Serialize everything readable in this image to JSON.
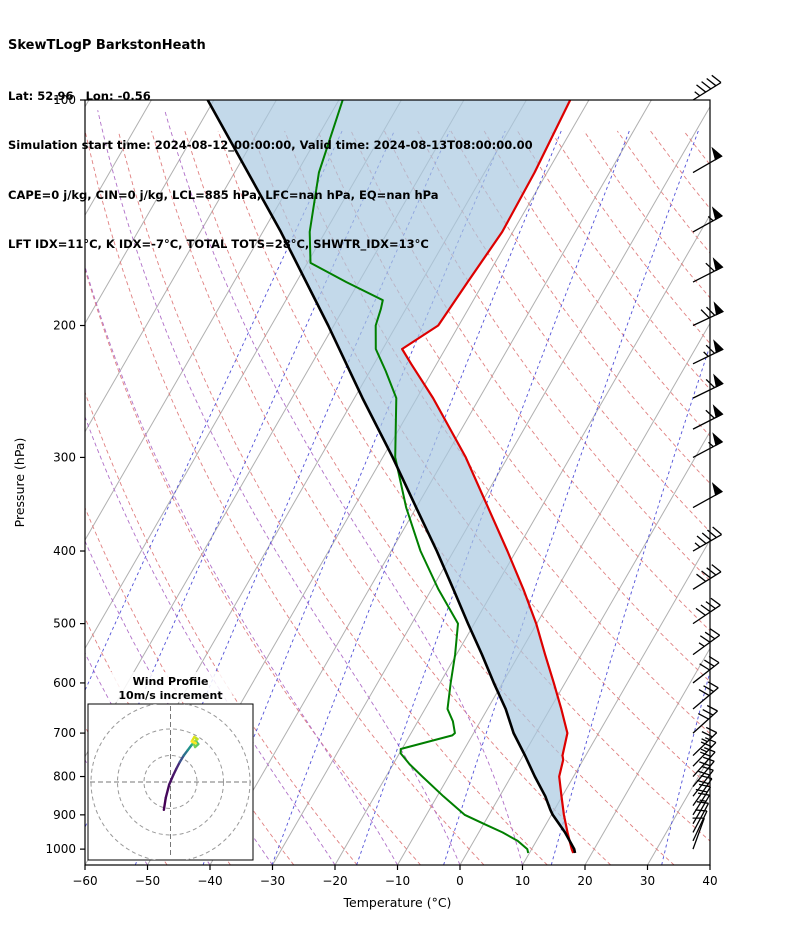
{
  "header": {
    "title": "SkewTLogP BarkstonHeath",
    "location": "Lat: 52.96   Lon: -0.56",
    "times": "Simulation start time: 2024-08-12_00:00:00, Valid time: 2024-08-13T08:00:00.00",
    "indices1": "CAPE=0 j/kg, CIN=0 j/kg, LCL=885 hPa, LFC=nan hPa, EQ=nan hPa",
    "indices2": "LFT IDX=11°C, K IDX=-7°C, TOTAL TOTS=28°C, SHWTR_IDX=13°C"
  },
  "chart_data": {
    "type": "skewt-logp",
    "title": "SkewTLogP BarkstonHeath",
    "xlabel": "Temperature (°C)",
    "ylabel": "Pressure (hPa)",
    "xlim": [
      -60,
      40
    ],
    "plim": [
      100,
      1050
    ],
    "skew_slope": 0.577,
    "x_ticks": [
      -60,
      -50,
      -40,
      -30,
      -20,
      -10,
      0,
      10,
      20,
      30,
      40
    ],
    "y_ticks": [
      100,
      200,
      300,
      400,
      500,
      600,
      700,
      800,
      900,
      1000
    ],
    "grid": {
      "isotherms_c": {
        "start": -160,
        "end": 40,
        "step": 10
      },
      "dry_adiabats_c": {
        "start": -50,
        "end": 180,
        "step": 10
      },
      "moist_adiabat_starts_c": [
        -60,
        -50,
        -40,
        -30,
        -20,
        -10,
        0,
        10
      ],
      "mixing_ratio_lines_g_kg": [
        0.002,
        0.008,
        0.03,
        0.1,
        0.3,
        1,
        3,
        10,
        30
      ]
    },
    "temperature_profile": [
      [
        1012,
        17.0
      ],
      [
        1000,
        16.4
      ],
      [
        950,
        14.2
      ],
      [
        900,
        12.0
      ],
      [
        850,
        9.9
      ],
      [
        800,
        7.7
      ],
      [
        760,
        6.8
      ],
      [
        750,
        6.3
      ],
      [
        700,
        5.0
      ],
      [
        650,
        1.8
      ],
      [
        600,
        -1.8
      ],
      [
        550,
        -5.8
      ],
      [
        500,
        -10.1
      ],
      [
        450,
        -15.3
      ],
      [
        400,
        -21.4
      ],
      [
        350,
        -28.5
      ],
      [
        300,
        -36.7
      ],
      [
        250,
        -47.4
      ],
      [
        225,
        -54.1
      ],
      [
        215,
        -56.9
      ],
      [
        200,
        -53.3
      ],
      [
        175,
        -52.6
      ],
      [
        150,
        -51.7
      ],
      [
        125,
        -52.0
      ],
      [
        100,
        -53.0
      ]
    ],
    "dewpoint_profile": [
      [
        1012,
        9.8
      ],
      [
        1000,
        9.3
      ],
      [
        975,
        7.0
      ],
      [
        950,
        3.8
      ],
      [
        925,
        0.0
      ],
      [
        900,
        -3.9
      ],
      [
        850,
        -9.0
      ],
      [
        800,
        -14.2
      ],
      [
        770,
        -17.4
      ],
      [
        745,
        -19.8
      ],
      [
        735,
        -20.2
      ],
      [
        705,
        -13.2
      ],
      [
        700,
        -13.0
      ],
      [
        675,
        -14.4
      ],
      [
        650,
        -16.4
      ],
      [
        600,
        -18.3
      ],
      [
        550,
        -20.2
      ],
      [
        500,
        -22.6
      ],
      [
        450,
        -28.9
      ],
      [
        400,
        -35.3
      ],
      [
        350,
        -41.6
      ],
      [
        300,
        -48.0
      ],
      [
        250,
        -53.3
      ],
      [
        230,
        -57.5
      ],
      [
        215,
        -61.1
      ],
      [
        200,
        -63.3
      ],
      [
        190,
        -64.0
      ],
      [
        185,
        -64.5
      ],
      [
        175,
        -72.0
      ],
      [
        165,
        -79.5
      ],
      [
        150,
        -82.5
      ],
      [
        125,
        -86.5
      ],
      [
        100,
        -89.4
      ]
    ],
    "parcel_profile": [
      [
        1012,
        17.3
      ],
      [
        1000,
        16.8
      ],
      [
        950,
        13.8
      ],
      [
        900,
        10.2
      ],
      [
        885,
        9.3
      ],
      [
        850,
        7.3
      ],
      [
        800,
        3.8
      ],
      [
        750,
        0.3
      ],
      [
        700,
        -3.6
      ],
      [
        650,
        -7.1
      ],
      [
        600,
        -11.4
      ],
      [
        550,
        -15.9
      ],
      [
        500,
        -21.0
      ],
      [
        450,
        -26.5
      ],
      [
        400,
        -32.7
      ],
      [
        350,
        -40.0
      ],
      [
        300,
        -48.4
      ],
      [
        250,
        -58.7
      ],
      [
        200,
        -70.9
      ],
      [
        150,
        -87.1
      ],
      [
        100,
        -111.0
      ]
    ],
    "wind_barbs": [
      [
        1000,
        8,
        200
      ],
      [
        975,
        10,
        205
      ],
      [
        950,
        12,
        208
      ],
      [
        925,
        15,
        210
      ],
      [
        900,
        18,
        212
      ],
      [
        875,
        18,
        215
      ],
      [
        850,
        20,
        218
      ],
      [
        825,
        22,
        220
      ],
      [
        800,
        22,
        222
      ],
      [
        775,
        25,
        224
      ],
      [
        750,
        25,
        226
      ],
      [
        700,
        28,
        228
      ],
      [
        650,
        30,
        230
      ],
      [
        600,
        32,
        232
      ],
      [
        550,
        35,
        234
      ],
      [
        500,
        38,
        236
      ],
      [
        450,
        42,
        238
      ],
      [
        400,
        45,
        240
      ],
      [
        350,
        50,
        241
      ],
      [
        300,
        55,
        242
      ],
      [
        275,
        58,
        243
      ],
      [
        250,
        62,
        244
      ],
      [
        225,
        65,
        244
      ],
      [
        200,
        68,
        245
      ],
      [
        175,
        62,
        243
      ],
      [
        150,
        55,
        241
      ],
      [
        125,
        50,
        240
      ],
      [
        100,
        45,
        238
      ]
    ],
    "barb_x": 693,
    "colors": {
      "temperature": "#dd0000",
      "dewpoint": "#007f00",
      "parcel": "#000000",
      "shade": "#a9c9e1",
      "isotherm": "#b0b0b0",
      "dry_adiabat": "#e08080",
      "moist_adiabat": "#b070c8",
      "mixing_ratio": "#5050d8",
      "barb": "#000000"
    },
    "hodograph": {
      "title_line1": "Wind Profile",
      "title_line2": "10m/s increment",
      "rings_ms": [
        10,
        20,
        30
      ],
      "trace_uv": [
        [
          -2.5,
          -10.5
        ],
        [
          -1.8,
          -6
        ],
        [
          -0.5,
          -1
        ],
        [
          1,
          2.5
        ],
        [
          2.2,
          5
        ],
        [
          3.5,
          7.5
        ],
        [
          5,
          10
        ],
        [
          6.5,
          12
        ],
        [
          8,
          14
        ],
        [
          9.5,
          15.5
        ],
        [
          10.5,
          14.3
        ],
        [
          9.3,
          13.2
        ],
        [
          8.6,
          14.8
        ],
        [
          10.2,
          16.2
        ],
        [
          9,
          17
        ],
        [
          8,
          15.3
        ],
        [
          9.6,
          14.6
        ]
      ],
      "trace_colors": [
        "#440154",
        "#46085c",
        "#471063",
        "#481769",
        "#472a7a",
        "#3b528b",
        "#2c728e",
        "#21918c",
        "#27ad81",
        "#42be71",
        "#5ec962",
        "#7ad151",
        "#9bd93c",
        "#bddf26",
        "#dfe318",
        "#fde725"
      ]
    }
  }
}
